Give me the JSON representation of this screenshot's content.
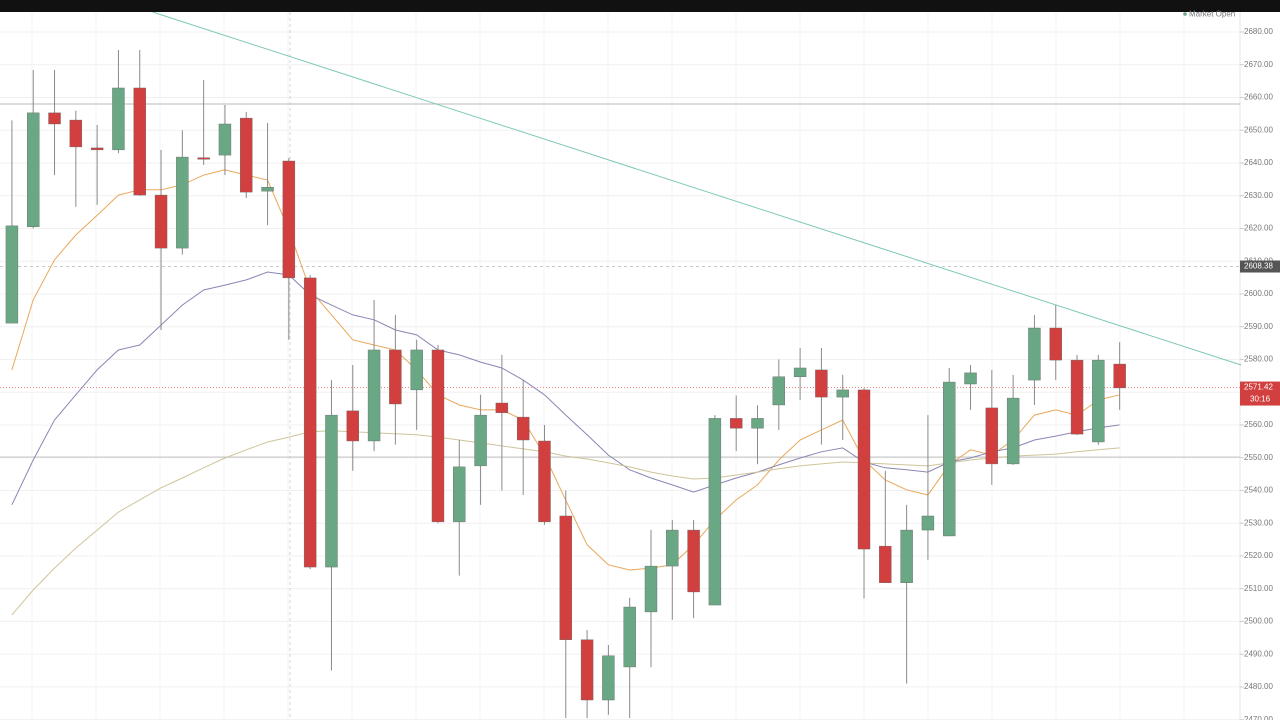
{
  "chart_data": {
    "type": "candlestick",
    "status": "Market Open",
    "open": [
      2591.1,
      2620.5,
      2655.3,
      2653.1,
      2644.6,
      2644.0,
      2662.9,
      2630.2,
      2614.0,
      2641.6,
      2642.4,
      2653.7,
      2631.4,
      2640.6,
      2604.9,
      2516.6,
      2564.3,
      2555.1,
      2582.9,
      2570.7,
      2582.9,
      2530.4,
      2547.5,
      2566.7,
      2562.4,
      2555.1,
      2532.2,
      2494.4,
      2476.0,
      2486.1,
      2502.9,
      2516.9,
      2527.9,
      2505.0,
      2562.0,
      2559.0,
      2566.1,
      2574.7,
      2576.8,
      2568.5,
      2570.7,
      2523.0,
      2511.8,
      2527.9,
      2526.1,
      2572.5,
      2565.2,
      2548.1,
      2573.7,
      2589.6,
      2579.8,
      2554.8,
      2578.6
    ],
    "high": [
      2653.0,
      2668.4,
      2668.4,
      2656.0,
      2651.6,
      2674.5,
      2674.5,
      2644.0,
      2650.0,
      2665.3,
      2657.7,
      2655.6,
      2652.2,
      2641.5,
      2605.8,
      2573.7,
      2578.3,
      2598.2,
      2593.6,
      2586.0,
      2584.4,
      2555.4,
      2569.2,
      2581.4,
      2573.7,
      2560.0,
      2540.0,
      2497.4,
      2492.8,
      2507.2,
      2528.0,
      2531.0,
      2531.0,
      2563.0,
      2569.0,
      2566.0,
      2580.0,
      2583.5,
      2583.5,
      2575.3,
      2571.3,
      2546.0,
      2535.6,
      2563.0,
      2577.4,
      2578.3,
      2576.8,
      2575.3,
      2593.6,
      2596.6,
      2581.4,
      2581.4,
      2585.3
    ],
    "low": [
      2591.0,
      2620.0,
      2636.3,
      2626.6,
      2627.2,
      2643.0,
      2630.0,
      2589.0,
      2612.0,
      2639.4,
      2636.3,
      2629.3,
      2621.0,
      2586.0,
      2516.0,
      2485.0,
      2546.0,
      2552.0,
      2554.0,
      2558.5,
      2530.0,
      2514.0,
      2535.6,
      2540.0,
      2538.6,
      2529.5,
      2470.5,
      2470.5,
      2471.5,
      2470.5,
      2486.0,
      2500.5,
      2501.0,
      2505.0,
      2552.0,
      2548.0,
      2558.5,
      2567.6,
      2554.0,
      2555.4,
      2507.0,
      2511.8,
      2481.0,
      2518.8,
      2526.0,
      2564.6,
      2541.7,
      2547.8,
      2566.1,
      2573.7,
      2556.9,
      2553.9,
      2564.6
    ],
    "close": [
      2620.8,
      2655.3,
      2651.9,
      2644.9,
      2644.0,
      2662.9,
      2630.2,
      2614.0,
      2641.8,
      2641.2,
      2651.9,
      2631.1,
      2632.6,
      2604.9,
      2516.6,
      2563.0,
      2555.1,
      2582.9,
      2566.4,
      2582.9,
      2530.4,
      2547.2,
      2563.0,
      2563.7,
      2555.4,
      2530.4,
      2494.4,
      2476.0,
      2489.5,
      2504.4,
      2516.9,
      2527.9,
      2509.0,
      2562.0,
      2559.0,
      2562.0,
      2574.7,
      2577.4,
      2568.5,
      2570.7,
      2522.1,
      2511.8,
      2527.9,
      2532.2,
      2573.1,
      2575.9,
      2548.1,
      2568.2,
      2589.6,
      2579.8,
      2557.2,
      2579.8,
      2571.3
    ],
    "up_color": "#6aa885",
    "down_color": "#d23f3f",
    "overlays": [
      {
        "color": "#e8a85a",
        "values": [
          2576.8,
          2598.2,
          2610.4,
          2618.0,
          2624.0,
          2630.2,
          2631.8,
          2631.8,
          2633.3,
          2636.3,
          2637.9,
          2636.3,
          2634.8,
          2619.5,
          2601.2,
          2593.6,
          2586.0,
          2584.4,
          2582.9,
          2576.8,
          2569.2,
          2566.1,
          2564.6,
          2564.6,
          2561.5,
          2550.8,
          2537.0,
          2523.4,
          2517.3,
          2515.7,
          2516.3,
          2517.3,
          2523.4,
          2531.0,
          2537.1,
          2541.7,
          2549.3,
          2555.4,
          2558.5,
          2561.5,
          2549.3,
          2543.2,
          2540.2,
          2538.6,
          2547.8,
          2552.4,
          2550.8,
          2555.4,
          2563.0,
          2564.6,
          2563.0,
          2567.6,
          2569.2
        ]
      },
      {
        "color": "#8a86b4",
        "values": [
          2535.6,
          2549.3,
          2561.5,
          2569.2,
          2576.8,
          2582.9,
          2584.4,
          2590.5,
          2596.6,
          2601.2,
          2602.7,
          2604.3,
          2606.7,
          2605.8,
          2599.7,
          2596.6,
          2593.6,
          2592.1,
          2589.0,
          2587.5,
          2582.9,
          2581.4,
          2579.2,
          2577.4,
          2573.7,
          2569.2,
          2563.0,
          2557.0,
          2550.8,
          2546.3,
          2543.8,
          2541.7,
          2539.5,
          2541.7,
          2543.8,
          2545.6,
          2547.8,
          2549.9,
          2551.8,
          2553.0,
          2548.7,
          2546.9,
          2546.3,
          2545.6,
          2548.7,
          2549.9,
          2551.8,
          2553.0,
          2555.4,
          2556.6,
          2557.9,
          2559.1,
          2560.0
        ]
      },
      {
        "color": "#cfc49a",
        "values": [
          2502.0,
          2509.6,
          2516.3,
          2522.4,
          2527.9,
          2533.4,
          2537.1,
          2540.8,
          2543.8,
          2546.9,
          2549.9,
          2552.4,
          2554.8,
          2556.3,
          2557.9,
          2558.2,
          2557.9,
          2557.6,
          2557.3,
          2557.0,
          2556.3,
          2555.4,
          2554.5,
          2553.6,
          2552.7,
          2551.8,
          2550.5,
          2549.6,
          2548.4,
          2547.2,
          2545.6,
          2544.4,
          2543.5,
          2543.8,
          2544.7,
          2545.6,
          2546.6,
          2547.5,
          2548.1,
          2548.7,
          2548.4,
          2548.1,
          2547.8,
          2547.5,
          2548.4,
          2549.3,
          2549.9,
          2550.5,
          2550.8,
          2551.1,
          2551.8,
          2552.4,
          2553.0
        ]
      }
    ],
    "trendline": {
      "color": "#7ec7b8",
      "x": [
        6.6,
        57.7
      ],
      "values": [
        2686.1,
        2578.3
      ]
    },
    "levels": [
      2658,
      2550.2
    ],
    "crosshair": {
      "value": 2608.38,
      "label": "2608.38"
    },
    "last_price": {
      "value": 2571.42,
      "label": "2571.42",
      "countdown": "30:16"
    },
    "xlim": [
      -0.56,
      57.65
    ],
    "ylim": [
      2469.9,
      2686.1
    ],
    "yticks": [
      {
        "value": 2680,
        "label": "2680.00"
      },
      {
        "value": 2670,
        "label": "2670.00"
      },
      {
        "value": 2660,
        "label": "2660.00"
      },
      {
        "value": 2650,
        "label": "2650.00"
      },
      {
        "value": 2640,
        "label": "2640.00"
      },
      {
        "value": 2630,
        "label": "2630.00"
      },
      {
        "value": 2620,
        "label": "2620.00"
      },
      {
        "value": 2610,
        "label": "2610.00"
      },
      {
        "value": 2600,
        "label": "2600.00"
      },
      {
        "value": 2590,
        "label": "2590.00"
      },
      {
        "value": 2580,
        "label": "2580.00"
      },
      {
        "value": 2570,
        "label": "2570.00"
      },
      {
        "value": 2560,
        "label": "2560.00"
      },
      {
        "value": 2550,
        "label": "2550.00"
      },
      {
        "value": 2540,
        "label": "2540.00"
      },
      {
        "value": 2530,
        "label": "2530.00"
      },
      {
        "value": 2520,
        "label": "2520.00"
      },
      {
        "value": 2510,
        "label": "2510.00"
      },
      {
        "value": 2500,
        "label": "2500.00"
      },
      {
        "value": 2490,
        "label": "2490.00"
      },
      {
        "value": 2480,
        "label": "2480.00"
      },
      {
        "value": 2470,
        "label": "2470.00"
      }
    ],
    "grid": true
  }
}
